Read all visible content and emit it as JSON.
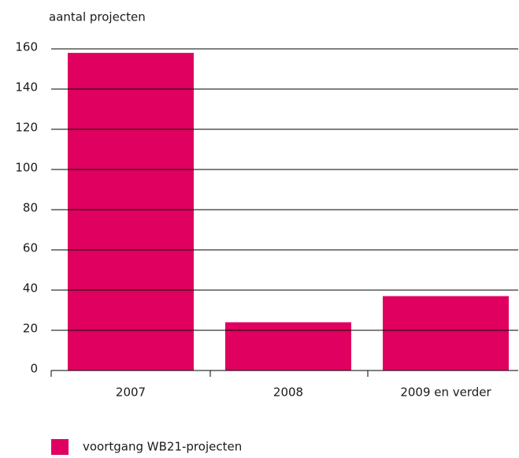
{
  "chart_data": {
    "type": "bar",
    "y_label": "aantal projecten",
    "categories": [
      "2007",
      "2008",
      "2009 en verder"
    ],
    "values": [
      158,
      24,
      37
    ],
    "color": "#e0005f",
    "ylim": [
      0,
      160
    ],
    "yticks": [
      0,
      20,
      40,
      60,
      80,
      100,
      120,
      140,
      160
    ],
    "grid": true,
    "legend": "voortgang WB21-projecten"
  }
}
